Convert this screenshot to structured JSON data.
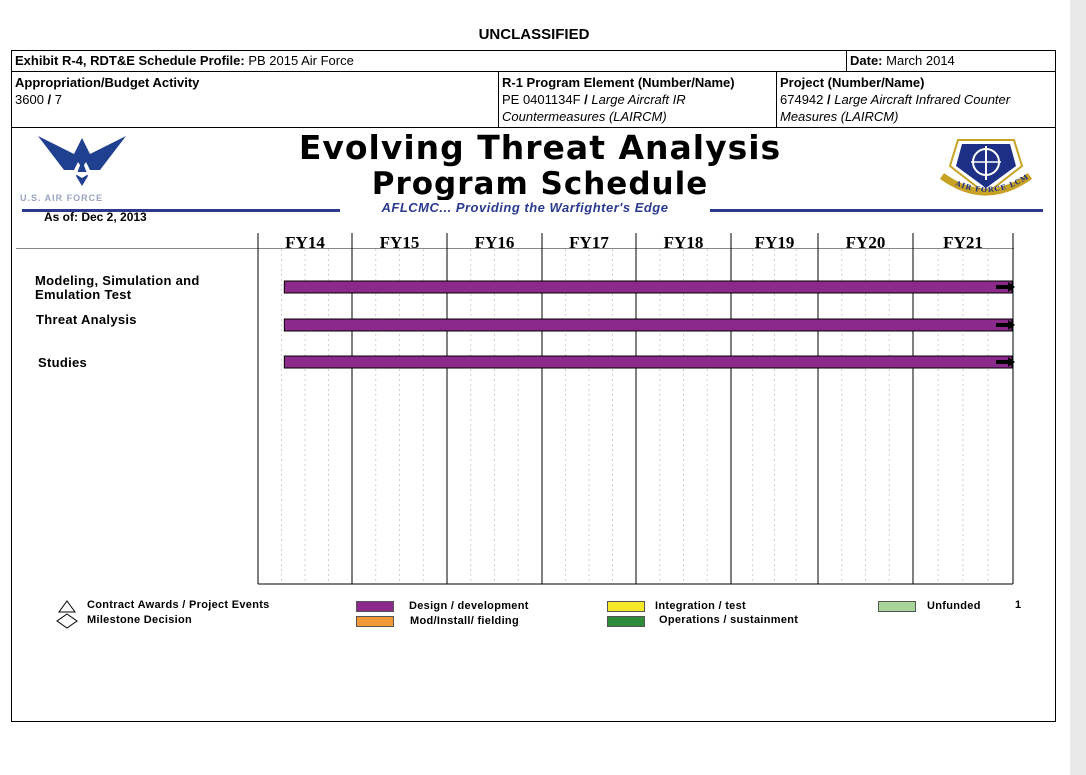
{
  "classification": "UNCLASSIFIED",
  "header": {
    "exhibit_label": "Exhibit R-4, RDT&E Schedule Profile:",
    "exhibit_value": "PB 2015 Air Force",
    "date_label": "Date:",
    "date_value": "March 2014",
    "appropriation_label": "Appropriation/Budget Activity",
    "appropriation_value_a": "3600",
    "appropriation_sep": "/",
    "appropriation_value_b": "7",
    "pe_label": "R-1 Program Element (Number/Name)",
    "pe_number": "PE 0401134F",
    "pe_sep": "/",
    "pe_name_line1": "Large Aircraft IR",
    "pe_name_line2": "Countermeasures (LAIRCM)",
    "project_label": "Project (Number/Name)",
    "project_number": "674942",
    "project_sep": "/",
    "project_name_line1": "Large Aircraft Infrared Counter",
    "project_name_line2": "Measures (LAIRCM)"
  },
  "slide": {
    "title_line1": "Evolving Threat Analysis",
    "title_line2": "Program Schedule",
    "tagline": "AFLCMC... Providing the Warfighter's Edge",
    "as_of": "As of: Dec 2, 2013",
    "usaf_logo_text": "U.S. AIR FORCE",
    "lcmc_seal_text": "AIR FORCE LCMC",
    "page_number": "1"
  },
  "schedule": {
    "fiscal_years": [
      "FY14",
      "FY15",
      "FY16",
      "FY17",
      "FY18",
      "FY19",
      "FY20",
      "FY21"
    ],
    "tasks": [
      {
        "name_line1": "Modeling, Simulation and",
        "name_line2": "Emulation Test",
        "start_fy": 2014.28,
        "end_fy": 2021.99,
        "type": "Design / development",
        "continues": true
      },
      {
        "name_line1": "Threat Analysis",
        "name_line2": "",
        "start_fy": 2014.28,
        "end_fy": 2021.99,
        "type": "Design / development",
        "continues": true
      },
      {
        "name_line1": "Studies",
        "name_line2": "",
        "start_fy": 2014.28,
        "end_fy": 2021.99,
        "type": "Design / development",
        "continues": true
      }
    ]
  },
  "legend": {
    "contract_awards": "Contract Awards / Project Events",
    "milestone": "Milestone Decision",
    "design": "Design / development",
    "mod_install": "Mod/Install/ fielding",
    "integration": "Integration / test",
    "operations": "Operations / sustainment",
    "unfunded": "Unfunded"
  },
  "colors": {
    "design": "#8b2a8b",
    "mod_install": "#f29a38",
    "integration": "#f4ea2a",
    "operations": "#2e8b3a",
    "unfunded": "#a6d49a",
    "tagline": "#2b3a8f",
    "rule": "#2b3a8f"
  }
}
